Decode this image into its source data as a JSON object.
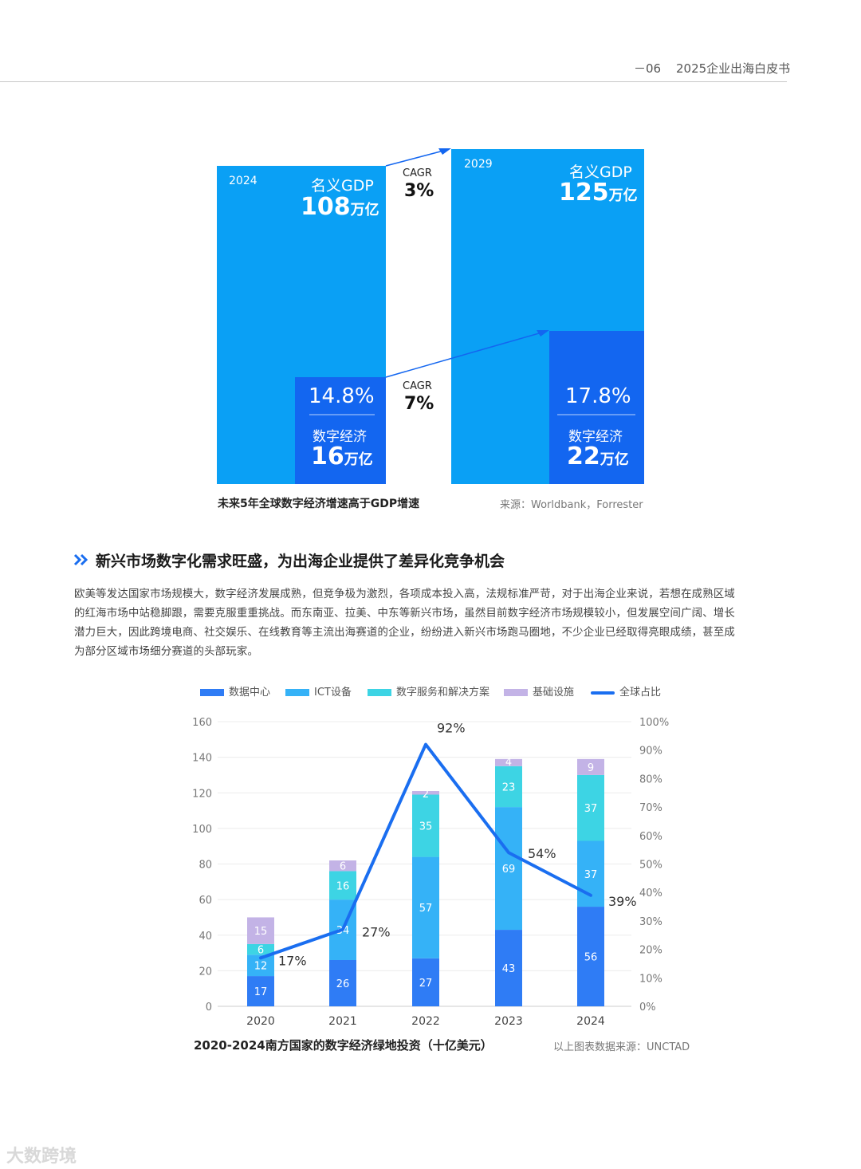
{
  "header": {
    "page_number": "－06",
    "doc_title": "2025企业出海白皮书"
  },
  "figure1": {
    "left_block": {
      "year": "2024",
      "gdp_label": "名义GDP",
      "gdp_value": "108",
      "gdp_unit": "万亿",
      "digital_share": "14.8%",
      "digital_label": "数字经济",
      "digital_value": "16",
      "digital_unit": "万亿"
    },
    "right_block": {
      "year": "2029",
      "gdp_label": "名义GDP",
      "gdp_value": "125",
      "gdp_unit": "万亿",
      "digital_share": "17.8%",
      "digital_label": "数字经济",
      "digital_value": "22",
      "digital_unit": "万亿"
    },
    "cagr_gdp": {
      "label": "CAGR",
      "value": "3%"
    },
    "cagr_digital": {
      "label": "CAGR",
      "value": "7%"
    },
    "caption": "未来5年全球数字经济增速高于GDP增速",
    "source": "来源：Worldbank，Forrester",
    "colors": {
      "gdp": "#0aa0f5",
      "digital": "#1366f0"
    }
  },
  "section": {
    "heading": "新兴市场数字化需求旺盛，为出海企业提供了差异化竞争机会",
    "paragraph_lines": [
      "欧美等发达国家市场规模大，数字经济发展成熟，但竞争极为激烈，各项成本投入高，法规标准严苛，对于出海企业来说，若想在成熟区域",
      "的红海市场中站稳脚跟，需要克服重重挑战。而东南亚、拉美、中东等新兴市场，虽然目前数字经济市场规模较小，但发展空间广阔、增长",
      "潜力巨大，因此跨境电商、社交娱乐、在线教育等主流出海赛道的企业，纷纷进入新兴市场跑马圈地，不少企业已经取得亮眼成绩，甚至成",
      "为部分区域市场细分赛道的头部玩家。"
    ]
  },
  "chart_data": {
    "type": "bar",
    "stacked": true,
    "categories": [
      "2020",
      "2021",
      "2022",
      "2023",
      "2024"
    ],
    "series": [
      {
        "name": "数据中心",
        "values": [
          17,
          26,
          27,
          43,
          56
        ],
        "color": "#2f7cf5"
      },
      {
        "name": "ICT设备",
        "values": [
          12,
          34,
          57,
          69,
          37
        ],
        "color": "#35b2f7"
      },
      {
        "name": "数字服务和解决方案",
        "values": [
          6,
          16,
          35,
          23,
          37
        ],
        "color": "#3dd4e4"
      },
      {
        "name": "基础设施",
        "values": [
          15,
          6,
          2,
          4,
          9
        ],
        "color": "#c3b3e6"
      }
    ],
    "line_series": {
      "name": "全球占比",
      "values": [
        17,
        27,
        92,
        54,
        39
      ],
      "labels": [
        "17%",
        "27%",
        "92%",
        "54%",
        "39%"
      ],
      "color": "#1a6ef0"
    },
    "ylim": [
      0,
      160
    ],
    "y_ticks": [
      "0",
      "20",
      "40",
      "60",
      "80",
      "100",
      "120",
      "140",
      "160"
    ],
    "y2lim": [
      0,
      100
    ],
    "y2_ticks": [
      "0%",
      "10%",
      "20%",
      "30%",
      "40%",
      "50%",
      "60%",
      "70%",
      "80%",
      "90%",
      "100%"
    ],
    "grid": true,
    "legend": "top",
    "title": "2020-2024南方国家的数字经济绿地投资（十亿美元）",
    "source": "以上图表数据来源：UNCTAD"
  },
  "watermark": "大数跨境"
}
